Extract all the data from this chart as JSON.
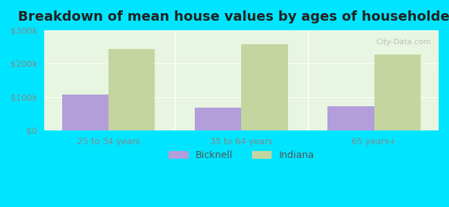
{
  "title": "Breakdown of mean house values by ages of householders",
  "categories": [
    "25 to 34 years",
    "35 to 64 years",
    "65 years+"
  ],
  "bicknell_values": [
    107000,
    68000,
    73000
  ],
  "indiana_values": [
    243000,
    258000,
    228000
  ],
  "ylim": [
    0,
    300000
  ],
  "yticks": [
    0,
    100000,
    200000,
    300000
  ],
  "ytick_labels": [
    "$0",
    "$100k",
    "$200k",
    "$300k"
  ],
  "bicknell_color": "#b39ddb",
  "indiana_color": "#c5d5a0",
  "background_outer": "#00e5ff",
  "bar_width": 0.35,
  "legend_labels": [
    "Bicknell",
    "Indiana"
  ],
  "title_fontsize": 14,
  "tick_fontsize": 9,
  "legend_fontsize": 10
}
